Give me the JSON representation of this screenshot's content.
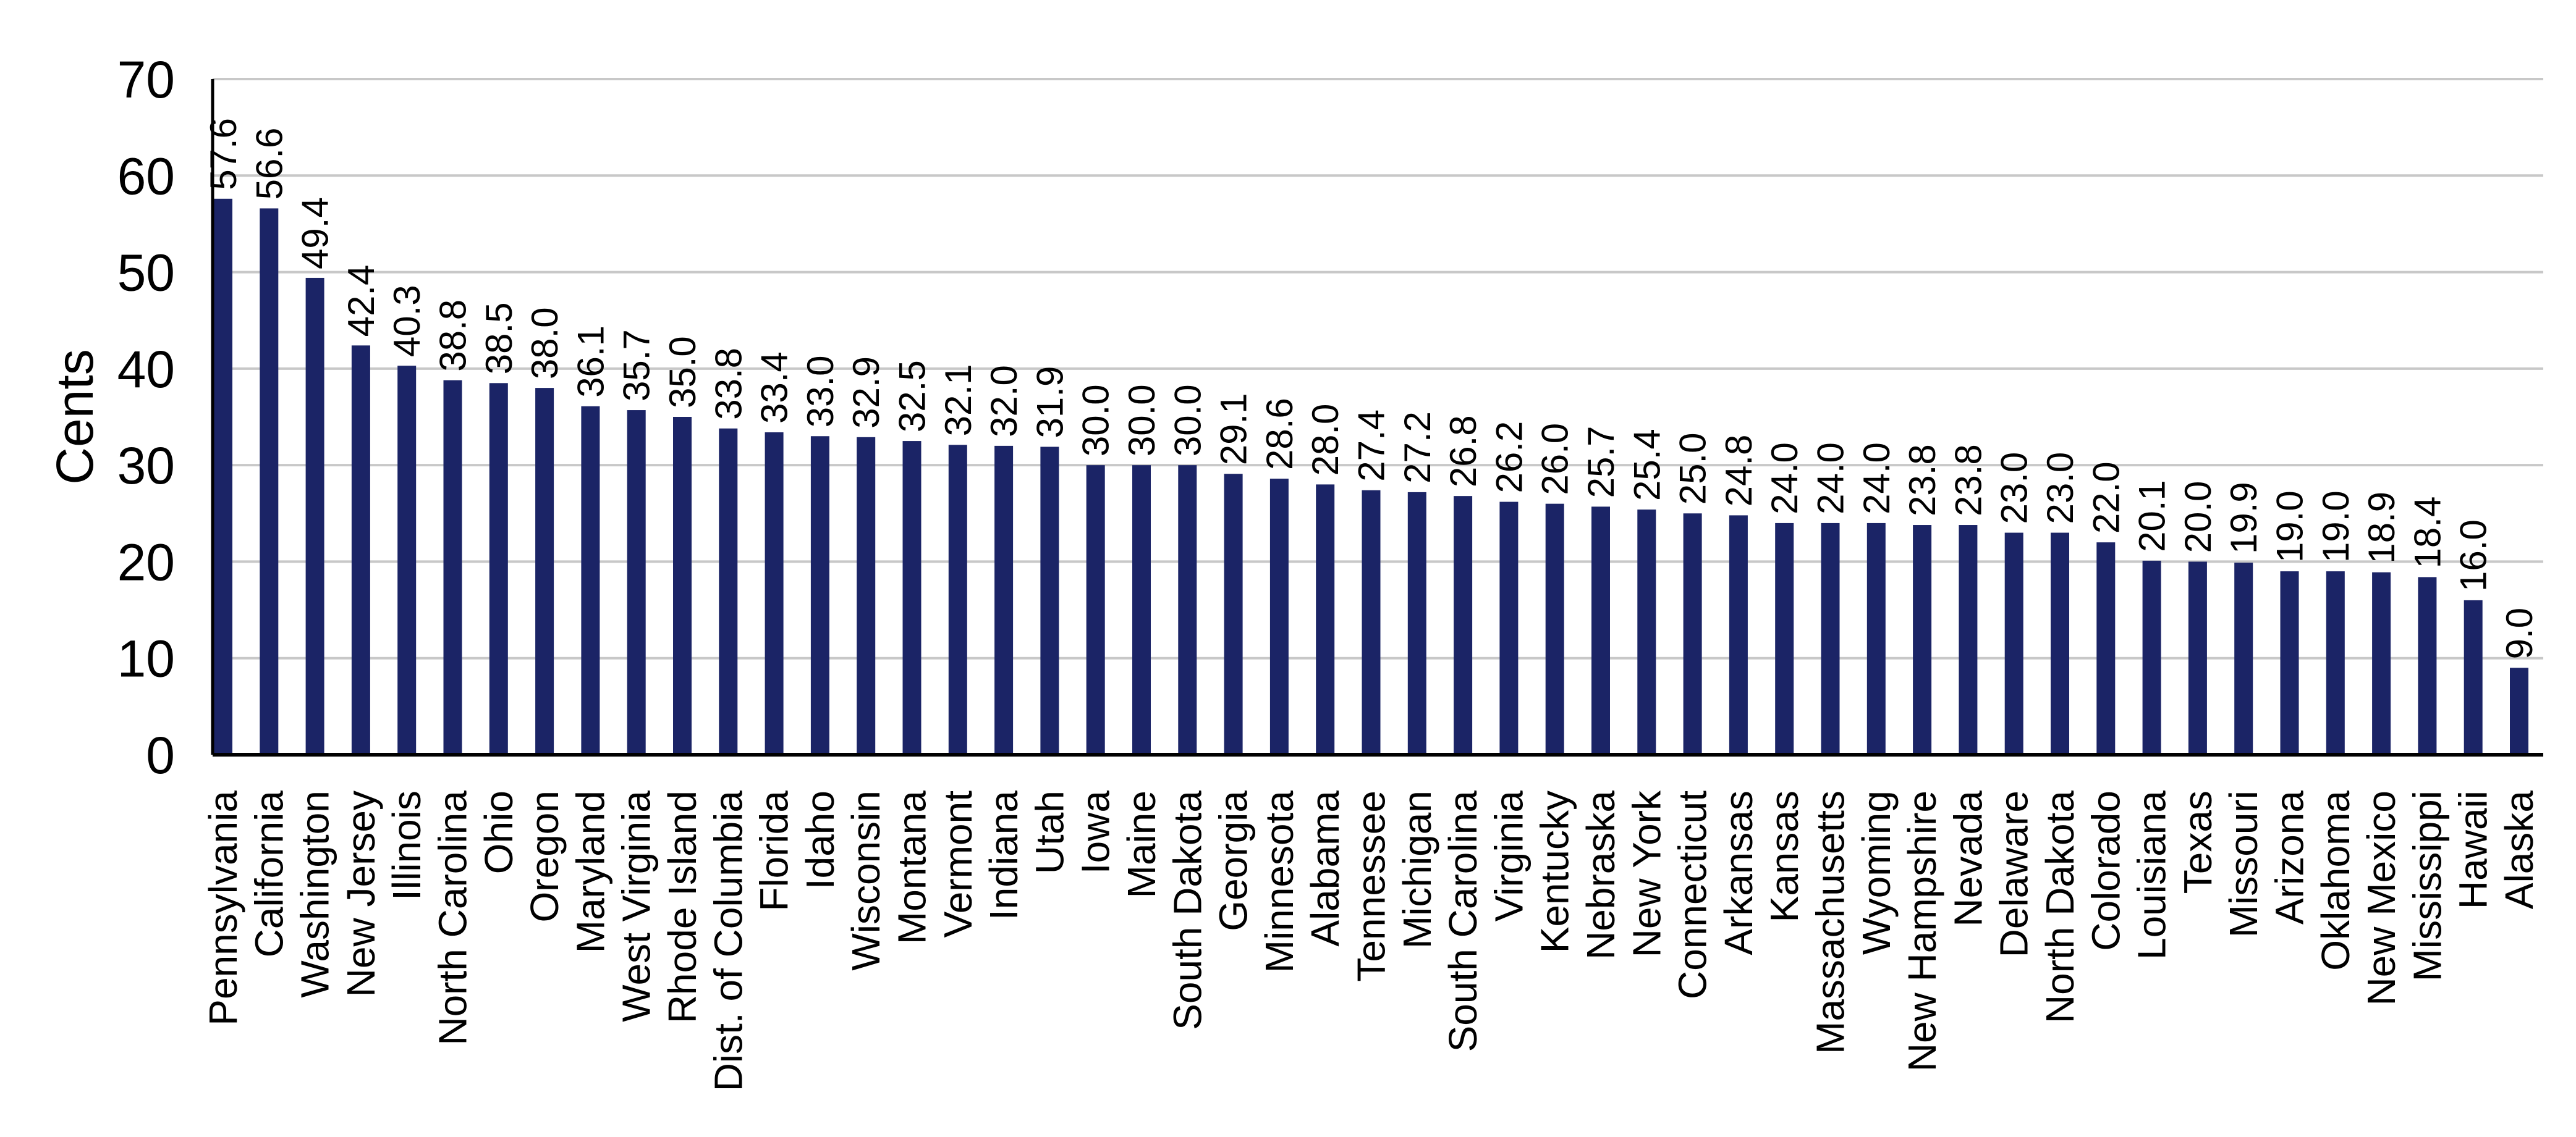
{
  "chart_data": {
    "type": "bar",
    "title": "",
    "xlabel": "",
    "ylabel": "Cents",
    "ylim": [
      0,
      70
    ],
    "yticks": [
      0,
      10,
      20,
      30,
      40,
      50,
      60,
      70
    ],
    "grid": true,
    "legend": "none",
    "bar_color": "#1b2466",
    "grid_color": "#c8c8c8",
    "axis_color": "#000000",
    "value_labels": [
      "57.6",
      "56.6",
      "49.4",
      "42.4",
      "40.3",
      "38.8",
      "38.5",
      "38.0",
      "36.1",
      "35.7",
      "35.0",
      "33.8",
      "33.4",
      "33.0",
      "32.9",
      "32.5",
      "32.1",
      "32.0",
      "31.9",
      "30.0",
      "30.0",
      "30.0",
      "29.1",
      "28.6",
      "28.0",
      "27.4",
      "27.2",
      "26.8",
      "26.2",
      "26.0",
      "25.7",
      "25.4",
      "25.0",
      "24.8",
      "24.0",
      "24.0",
      "24.0",
      "23.8",
      "23.8",
      "23.0",
      "23.0",
      "22.0",
      "20.1",
      "20.0",
      "19.9",
      "19.0",
      "19.0",
      "18.9",
      "18.4",
      "16.0",
      "9.0"
    ],
    "categories": [
      "Pennsylvania",
      "California",
      "Washington",
      "New Jersey",
      "Illinois",
      "North Carolina",
      "Ohio",
      "Oregon",
      "Maryland",
      "West Virginia",
      "Rhode Island",
      "Dist. of Columbia",
      "Florida",
      "Idaho",
      "Wisconsin",
      "Montana",
      "Vermont",
      "Indiana",
      "Utah",
      "Iowa",
      "Maine",
      "South Dakota",
      "Georgia",
      "Minnesota",
      "Alabama",
      "Tennessee",
      "Michigan",
      "South Carolina",
      "Virginia",
      "Kentucky",
      "Nebraska",
      "New York",
      "Connecticut",
      "Arkansas",
      "Kansas",
      "Massachusetts",
      "Wyoming",
      "New Hampshire",
      "Nevada",
      "Delaware",
      "North Dakota",
      "Colorado",
      "Louisiana",
      "Texas",
      "Missouri",
      "Arizona",
      "Oklahoma",
      "New Mexico",
      "Mississippi",
      "Hawaii",
      "Alaska"
    ],
    "values": [
      57.6,
      56.6,
      49.4,
      42.4,
      40.3,
      38.8,
      38.5,
      38.0,
      36.1,
      35.7,
      35.0,
      33.8,
      33.4,
      33.0,
      32.9,
      32.5,
      32.1,
      32.0,
      31.9,
      30.0,
      30.0,
      30.0,
      29.1,
      28.6,
      28.0,
      27.4,
      27.2,
      26.8,
      26.2,
      26.0,
      25.7,
      25.4,
      25.0,
      24.8,
      24.0,
      24.0,
      24.0,
      23.8,
      23.8,
      23.0,
      23.0,
      22.0,
      20.1,
      20.0,
      19.9,
      19.0,
      19.0,
      18.9,
      18.4,
      16.0,
      9.0
    ]
  }
}
